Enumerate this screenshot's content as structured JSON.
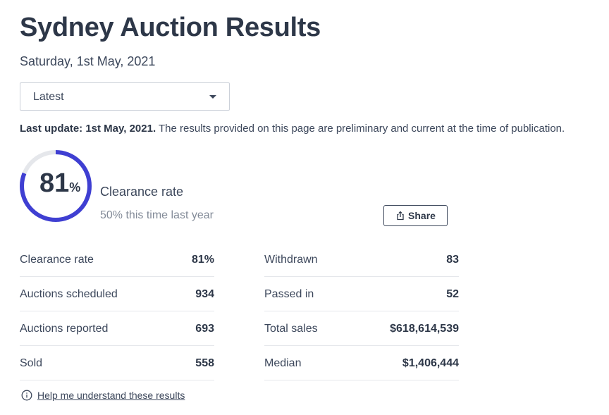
{
  "page": {
    "title": "Sydney Auction Results",
    "date": "Saturday, 1st May, 2021"
  },
  "filter": {
    "selected": "Latest",
    "icon": "chevron-down-icon"
  },
  "update": {
    "bold": "Last update: 1st May, 2021.",
    "text": " The results provided on this page are preliminary and current at the time of publication."
  },
  "clearance": {
    "value": "81",
    "unit": "%",
    "progress_percent": 81,
    "label": "Clearance rate",
    "last_year": "50% this time last year",
    "ring_color": "#3f3fd2",
    "track_color": "#e5e7eb"
  },
  "share": {
    "label": "Share",
    "icon": "share-icon"
  },
  "stats_left": [
    {
      "label": "Clearance rate",
      "value": "81%"
    },
    {
      "label": "Auctions scheduled",
      "value": "934"
    },
    {
      "label": "Auctions reported",
      "value": "693"
    },
    {
      "label": "Sold",
      "value": "558"
    }
  ],
  "stats_right": [
    {
      "label": "Withdrawn",
      "value": "83"
    },
    {
      "label": "Passed in",
      "value": "52"
    },
    {
      "label": "Total sales",
      "value": "$618,614,539"
    },
    {
      "label": "Median",
      "value": "$1,406,444"
    }
  ],
  "help": {
    "label": "Help me understand these results",
    "icon": "info-icon"
  }
}
